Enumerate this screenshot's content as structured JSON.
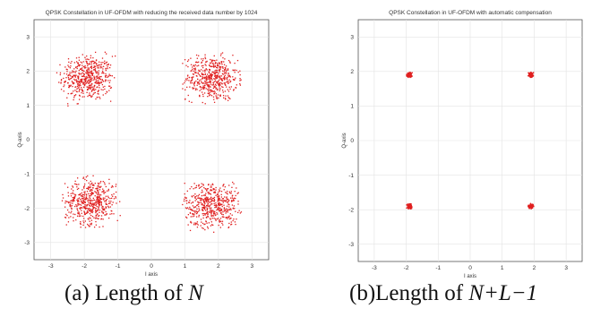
{
  "chart_data": [
    {
      "type": "scatter",
      "title": "QPSK Constellation in UF-OFDM with reducing the received data number by 1024",
      "xlabel": "I axis",
      "ylabel": "Q-axis",
      "xlim": [
        -3.5,
        3.5
      ],
      "ylim": [
        -3.5,
        3.5
      ],
      "xticks": [
        -3,
        -2,
        -1,
        0,
        1,
        2,
        3
      ],
      "yticks": [
        -3,
        -2,
        -1,
        0,
        1,
        2,
        3
      ],
      "grid": true,
      "marker_color": "#e02020",
      "series": [
        {
          "clusters": [
            {
              "center": [
                -1.9,
                1.8
              ],
              "spread": 0.38
            },
            {
              "center": [
                1.8,
                1.8
              ],
              "spread": 0.38
            },
            {
              "center": [
                -1.8,
                -1.8
              ],
              "spread": 0.38
            },
            {
              "center": [
                1.8,
                -1.9
              ],
              "spread": 0.4
            }
          ]
        }
      ]
    },
    {
      "type": "scatter",
      "title": "QPSK Constellation in UF-OFDM with automatic compensation",
      "xlabel": "I axis",
      "ylabel": "Q-axis",
      "xlim": [
        -3.5,
        3.5
      ],
      "ylim": [
        -3.5,
        3.5
      ],
      "xticks": [
        -3,
        -2,
        -1,
        0,
        1,
        2,
        3
      ],
      "yticks": [
        -3,
        -2,
        -1,
        0,
        1,
        2,
        3
      ],
      "grid": true,
      "marker_color": "#e02020",
      "series": [
        {
          "clusters": [
            {
              "center": [
                -1.9,
                1.9
              ],
              "spread": 0.04
            },
            {
              "center": [
                1.9,
                1.9
              ],
              "spread": 0.04
            },
            {
              "center": [
                -1.9,
                -1.9
              ],
              "spread": 0.04
            },
            {
              "center": [
                1.9,
                -1.9
              ],
              "spread": 0.04
            }
          ]
        }
      ]
    }
  ],
  "captions": {
    "a_prefix": "(a) Length of ",
    "a_math": "N",
    "b_prefix": "(b)Length of ",
    "b_math": "N+L−1"
  }
}
